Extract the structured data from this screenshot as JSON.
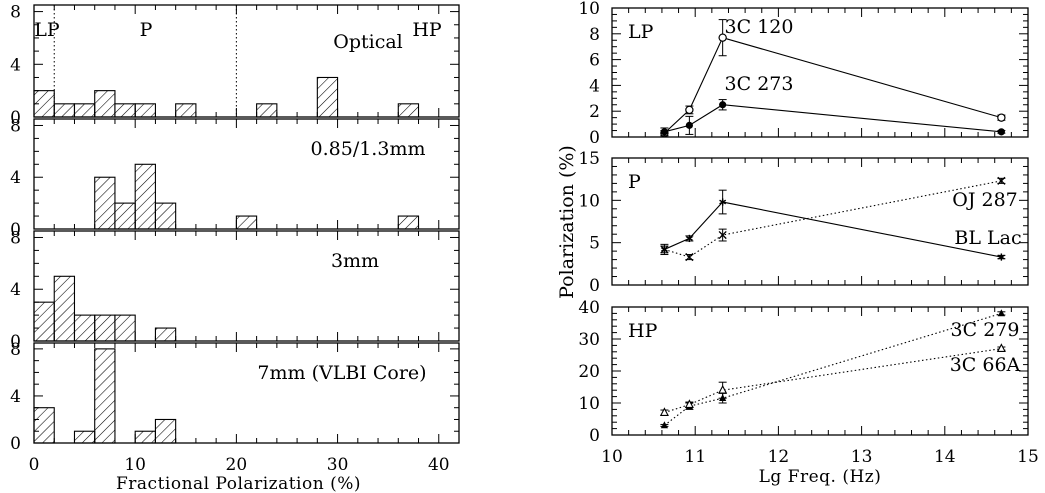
{
  "chart_data": [
    {
      "type": "histogram",
      "panel": "Optical",
      "annotation": "Optical",
      "regions": [
        "LP",
        "P",
        "HP"
      ],
      "region_boundaries": [
        2,
        20
      ],
      "bin_width": 2,
      "bin_starts": [
        0,
        2,
        4,
        6,
        8,
        10,
        14,
        22,
        28,
        36
      ],
      "counts": [
        2,
        1,
        1,
        2,
        1,
        1,
        1,
        1,
        3,
        1
      ],
      "xlim": [
        0,
        42
      ],
      "ylim": [
        0,
        8.5
      ],
      "yticks": [
        "0",
        "4",
        "8"
      ]
    },
    {
      "type": "histogram",
      "panel": "0.85/1.3mm",
      "annotation": "0.85/1.3mm",
      "bin_width": 2,
      "bin_starts": [
        6,
        8,
        10,
        12,
        20,
        36
      ],
      "counts": [
        4,
        2,
        5,
        2,
        1,
        1
      ],
      "xlim": [
        0,
        42
      ],
      "ylim": [
        0,
        8.5
      ],
      "yticks": [
        "0",
        "4",
        "8"
      ]
    },
    {
      "type": "histogram",
      "panel": "3mm",
      "annotation": "3mm",
      "bin_width": 2,
      "bin_starts": [
        0,
        2,
        4,
        6,
        8,
        12
      ],
      "counts": [
        3,
        5,
        2,
        2,
        2,
        1
      ],
      "xlim": [
        0,
        42
      ],
      "ylim": [
        0,
        8.5
      ],
      "yticks": [
        "0",
        "4",
        "8"
      ]
    },
    {
      "type": "histogram",
      "panel": "7mm",
      "annotation": "7mm (VLBI Core)",
      "bin_width": 2,
      "bin_starts": [
        0,
        4,
        6,
        10,
        12
      ],
      "counts": [
        3,
        1,
        8,
        1,
        2
      ],
      "xlim": [
        0,
        42
      ],
      "ylim": [
        0,
        8.5
      ],
      "yticks": [
        "0",
        "4",
        "8"
      ],
      "xticks": [
        "0",
        "10",
        "20",
        "30",
        "40"
      ],
      "xlabel": "Fractional Polarization (%)"
    },
    {
      "type": "line",
      "panel": "LP",
      "label": "LP",
      "xlim": [
        10,
        15
      ],
      "ylim": [
        0,
        10
      ],
      "yticks": [
        "0",
        "2",
        "4",
        "6",
        "8",
        "10"
      ],
      "series": [
        {
          "name": "3C 120",
          "marker": "open-circle",
          "line": "solid",
          "x": [
            10.63,
            10.93,
            11.33,
            14.68
          ],
          "y": [
            0.3,
            2.1,
            7.7,
            1.5
          ],
          "err": [
            0.2,
            0.3,
            1.4,
            0.2
          ]
        },
        {
          "name": "3C 273",
          "marker": "filled-circle",
          "line": "solid",
          "x": [
            10.63,
            10.93,
            11.33,
            14.68
          ],
          "y": [
            0.4,
            0.9,
            2.5,
            0.4
          ],
          "err": [
            0.3,
            0.7,
            0.4,
            0.1
          ]
        }
      ]
    },
    {
      "type": "line",
      "panel": "P",
      "label": "P",
      "ylabel": "Polarization (%)",
      "xlim": [
        10,
        15
      ],
      "ylim": [
        0,
        15
      ],
      "yticks": [
        "0",
        "5",
        "10",
        "15"
      ],
      "series": [
        {
          "name": "OJ 287",
          "marker": "cross",
          "line": "dotted",
          "x": [
            10.63,
            10.93,
            11.33,
            14.68
          ],
          "y": [
            4.2,
            3.3,
            5.9,
            12.3
          ],
          "err": [
            0.4,
            0.3,
            0.7,
            0.3
          ]
        },
        {
          "name": "BL Lac",
          "marker": "asterisk",
          "line": "solid",
          "x": [
            10.63,
            10.93,
            11.33,
            14.68
          ],
          "y": [
            4.2,
            5.5,
            9.8,
            3.3
          ],
          "err": [
            0.6,
            0.3,
            1.4,
            0.2
          ]
        }
      ]
    },
    {
      "type": "line",
      "panel": "HP",
      "label": "HP",
      "xlim": [
        10,
        15
      ],
      "ylim": [
        0,
        40
      ],
      "yticks": [
        "0",
        "10",
        "20",
        "30",
        "40"
      ],
      "xticks": [
        "10",
        "11",
        "12",
        "13",
        "14",
        "15"
      ],
      "xlabel": "Lg Freq. (Hz)",
      "series": [
        {
          "name": "3C 279",
          "marker": "filled-triangle",
          "line": "dotted",
          "x": [
            10.63,
            10.93,
            11.33,
            14.68
          ],
          "y": [
            3.0,
            9.0,
            11.5,
            38.0
          ],
          "err": [
            0.3,
            1.0,
            1.5,
            0.5
          ]
        },
        {
          "name": "3C 66A",
          "marker": "open-triangle",
          "line": "dotted",
          "x": [
            10.63,
            10.93,
            11.33,
            14.68
          ],
          "y": [
            7.0,
            9.5,
            14.0,
            27.0
          ],
          "err": [
            0.8,
            0.8,
            2.5,
            0.5
          ]
        }
      ]
    }
  ]
}
